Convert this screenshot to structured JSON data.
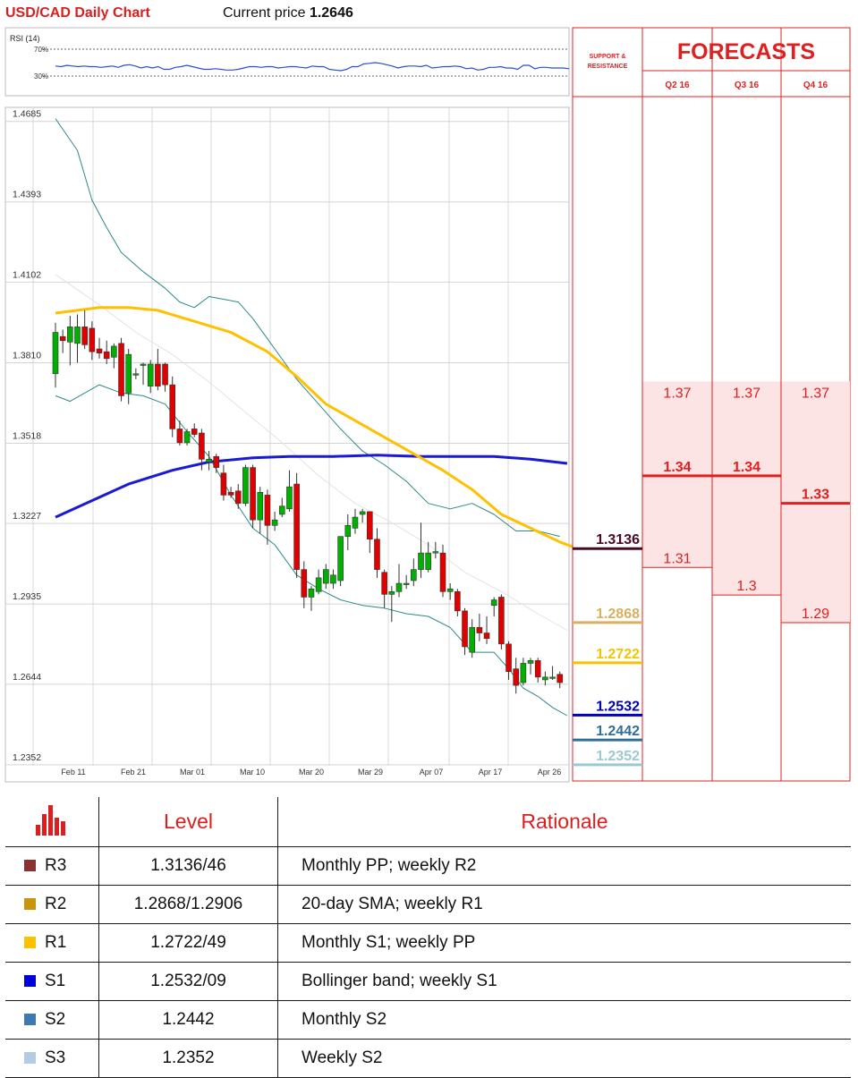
{
  "header": {
    "title": "USD/CAD Daily Chart",
    "price_label": "Current price",
    "price_value": "1.2646"
  },
  "rsi": {
    "label": "RSI (14)",
    "upper": "70%",
    "lower": "30%",
    "values": [
      45,
      44,
      46,
      45,
      44,
      45,
      44,
      44,
      43,
      44,
      45,
      43,
      46,
      47,
      45,
      42,
      44,
      42,
      44,
      40,
      40,
      43,
      44,
      46,
      44,
      42,
      40,
      40,
      41,
      40,
      39,
      39,
      40,
      42,
      44,
      44,
      43,
      44,
      44,
      42,
      43,
      44,
      44,
      43,
      42,
      45,
      44,
      44,
      40,
      39,
      38,
      40,
      44,
      44,
      48,
      49,
      50,
      49,
      47,
      45,
      42,
      44,
      45,
      45,
      44,
      46,
      42,
      43,
      44,
      44,
      45,
      44,
      41,
      42,
      39,
      40,
      43,
      43,
      44,
      42,
      42,
      40,
      46,
      46,
      41,
      43,
      43,
      42,
      42,
      42,
      41
    ]
  },
  "forecasts": {
    "title": "FORECASTS",
    "sr_label_1": "SUPPORT &",
    "sr_label_2": "RESISTANCE",
    "quarters": [
      "Q2 16",
      "Q3 16",
      "Q4 16"
    ],
    "q2": {
      "high": "1.37",
      "mid": "1.34",
      "low": "1.31"
    },
    "q3": {
      "high": "1.37",
      "mid": "1.34",
      "low": "1.3"
    },
    "q4": {
      "high": "1.37",
      "mid": "1.33",
      "low": "1.29"
    },
    "sr_levels": [
      {
        "label": "1.3136",
        "value": 1.3136,
        "color": "#4a0a24"
      },
      {
        "label": "1.2868",
        "value": 1.2868,
        "color": "#d8b060"
      },
      {
        "label": "1.2722",
        "value": 1.2722,
        "color": "#f5c400"
      },
      {
        "label": "1.2532",
        "value": 1.2532,
        "color": "#0000b8"
      },
      {
        "label": "1.2442",
        "value": 1.2442,
        "color": "#2f6f9a"
      },
      {
        "label": "1.2352",
        "value": 1.2352,
        "color": "#9cc8d3"
      }
    ]
  },
  "chart_data": {
    "type": "candlestick",
    "title": "USD/CAD Daily Chart",
    "yticks": [
      "1.4685",
      "1.4393",
      "1.4102",
      "1.3810",
      "1.3518",
      "1.3227",
      "1.2935",
      "1.2644",
      "1.2352"
    ],
    "ylim": [
      1.229,
      1.471
    ],
    "xticks": [
      "Feb 11",
      "Feb 21",
      "Mar 01",
      "Mar 10",
      "Mar 20",
      "Mar 29",
      "Apr 07",
      "Apr 17",
      "Apr 26"
    ],
    "candles": [
      {
        "o": 1.377,
        "h": 1.3955,
        "l": 1.372,
        "c": 1.392
      },
      {
        "o": 1.3905,
        "h": 1.393,
        "l": 1.3845,
        "c": 1.389
      },
      {
        "o": 1.3885,
        "h": 1.398,
        "l": 1.38,
        "c": 1.394
      },
      {
        "o": 1.388,
        "h": 1.3985,
        "l": 1.381,
        "c": 1.394
      },
      {
        "o": 1.394,
        "h": 1.4,
        "l": 1.386,
        "c": 1.3875
      },
      {
        "o": 1.3935,
        "h": 1.396,
        "l": 1.382,
        "c": 1.385
      },
      {
        "o": 1.386,
        "h": 1.39,
        "l": 1.3825,
        "c": 1.3845
      },
      {
        "o": 1.385,
        "h": 1.389,
        "l": 1.3805,
        "c": 1.3825
      },
      {
        "o": 1.383,
        "h": 1.388,
        "l": 1.379,
        "c": 1.387
      },
      {
        "o": 1.388,
        "h": 1.39,
        "l": 1.367,
        "c": 1.369
      },
      {
        "o": 1.37,
        "h": 1.386,
        "l": 1.366,
        "c": 1.384
      },
      {
        "o": 1.3765,
        "h": 1.379,
        "l": 1.375,
        "c": 1.377
      },
      {
        "o": 1.38,
        "h": 1.381,
        "l": 1.373,
        "c": 1.3805
      },
      {
        "o": 1.3725,
        "h": 1.382,
        "l": 1.37,
        "c": 1.3805
      },
      {
        "o": 1.3805,
        "h": 1.386,
        "l": 1.371,
        "c": 1.3725
      },
      {
        "o": 1.3805,
        "h": 1.381,
        "l": 1.3705,
        "c": 1.373
      },
      {
        "o": 1.373,
        "h": 1.376,
        "l": 1.354,
        "c": 1.357
      },
      {
        "o": 1.357,
        "h": 1.36,
        "l": 1.351,
        "c": 1.352
      },
      {
        "o": 1.352,
        "h": 1.357,
        "l": 1.351,
        "c": 1.356
      },
      {
        "o": 1.357,
        "h": 1.359,
        "l": 1.354,
        "c": 1.355
      },
      {
        "o": 1.3555,
        "h": 1.357,
        "l": 1.342,
        "c": 1.346
      },
      {
        "o": 1.345,
        "h": 1.349,
        "l": 1.342,
        "c": 1.346
      },
      {
        "o": 1.347,
        "h": 1.348,
        "l": 1.341,
        "c": 1.343
      },
      {
        "o": 1.341,
        "h": 1.344,
        "l": 1.331,
        "c": 1.333
      },
      {
        "o": 1.334,
        "h": 1.336,
        "l": 1.332,
        "c": 1.333
      },
      {
        "o": 1.3345,
        "h": 1.337,
        "l": 1.328,
        "c": 1.33
      },
      {
        "o": 1.33,
        "h": 1.344,
        "l": 1.329,
        "c": 1.343
      },
      {
        "o": 1.343,
        "h": 1.344,
        "l": 1.321,
        "c": 1.324
      },
      {
        "o": 1.324,
        "h": 1.336,
        "l": 1.319,
        "c": 1.334
      },
      {
        "o": 1.333,
        "h": 1.335,
        "l": 1.315,
        "c": 1.322
      },
      {
        "o": 1.322,
        "h": 1.327,
        "l": 1.32,
        "c": 1.324
      },
      {
        "o": 1.326,
        "h": 1.332,
        "l": 1.325,
        "c": 1.329
      },
      {
        "o": 1.328,
        "h": 1.342,
        "l": 1.327,
        "c": 1.336
      },
      {
        "o": 1.337,
        "h": 1.341,
        "l": 1.303,
        "c": 1.306
      },
      {
        "o": 1.306,
        "h": 1.309,
        "l": 1.292,
        "c": 1.296
      },
      {
        "o": 1.296,
        "h": 1.3,
        "l": 1.291,
        "c": 1.299
      },
      {
        "o": 1.298,
        "h": 1.306,
        "l": 1.297,
        "c": 1.303
      },
      {
        "o": 1.301,
        "h": 1.308,
        "l": 1.299,
        "c": 1.306
      },
      {
        "o": 1.301,
        "h": 1.306,
        "l": 1.299,
        "c": 1.304
      },
      {
        "o": 1.302,
        "h": 1.318,
        "l": 1.3,
        "c": 1.318
      },
      {
        "o": 1.318,
        "h": 1.326,
        "l": 1.313,
        "c": 1.322
      },
      {
        "o": 1.321,
        "h": 1.328,
        "l": 1.319,
        "c": 1.325
      },
      {
        "o": 1.326,
        "h": 1.328,
        "l": 1.323,
        "c": 1.327
      },
      {
        "o": 1.327,
        "h": 1.327,
        "l": 1.312,
        "c": 1.317
      },
      {
        "o": 1.317,
        "h": 1.321,
        "l": 1.303,
        "c": 1.306
      },
      {
        "o": 1.305,
        "h": 1.306,
        "l": 1.292,
        "c": 1.297
      },
      {
        "o": 1.297,
        "h": 1.3,
        "l": 1.287,
        "c": 1.298
      },
      {
        "o": 1.298,
        "h": 1.308,
        "l": 1.296,
        "c": 1.301
      },
      {
        "o": 1.301,
        "h": 1.304,
        "l": 1.299,
        "c": 1.301
      },
      {
        "o": 1.302,
        "h": 1.31,
        "l": 1.3,
        "c": 1.306
      },
      {
        "o": 1.306,
        "h": 1.323,
        "l": 1.303,
        "c": 1.312
      },
      {
        "o": 1.306,
        "h": 1.316,
        "l": 1.305,
        "c": 1.312
      },
      {
        "o": 1.312,
        "h": 1.316,
        "l": 1.31,
        "c": 1.3125
      },
      {
        "o": 1.312,
        "h": 1.315,
        "l": 1.296,
        "c": 1.298
      },
      {
        "o": 1.298,
        "h": 1.301,
        "l": 1.295,
        "c": 1.299
      },
      {
        "o": 1.298,
        "h": 1.299,
        "l": 1.289,
        "c": 1.291
      },
      {
        "o": 1.291,
        "h": 1.292,
        "l": 1.275,
        "c": 1.278
      },
      {
        "o": 1.276,
        "h": 1.288,
        "l": 1.274,
        "c": 1.285
      },
      {
        "o": 1.285,
        "h": 1.29,
        "l": 1.28,
        "c": 1.283
      },
      {
        "o": 1.283,
        "h": 1.289,
        "l": 1.279,
        "c": 1.281
      },
      {
        "o": 1.293,
        "h": 1.296,
        "l": 1.289,
        "c": 1.295
      },
      {
        "o": 1.296,
        "h": 1.297,
        "l": 1.277,
        "c": 1.279
      },
      {
        "o": 1.279,
        "h": 1.28,
        "l": 1.266,
        "c": 1.269
      },
      {
        "o": 1.27,
        "h": 1.274,
        "l": 1.261,
        "c": 1.264
      },
      {
        "o": 1.265,
        "h": 1.274,
        "l": 1.264,
        "c": 1.272
      },
      {
        "o": 1.272,
        "h": 1.274,
        "l": 1.268,
        "c": 1.273
      },
      {
        "o": 1.273,
        "h": 1.274,
        "l": 1.265,
        "c": 1.267
      },
      {
        "o": 1.266,
        "h": 1.269,
        "l": 1.264,
        "c": 1.267
      },
      {
        "o": 1.267,
        "h": 1.271,
        "l": 1.266,
        "c": 1.267
      },
      {
        "o": 1.268,
        "h": 1.269,
        "l": 1.263,
        "c": 1.265
      }
    ],
    "sma50": [
      [
        0,
        1.399
      ],
      [
        3,
        1.4
      ],
      [
        6,
        1.401
      ],
      [
        10,
        1.401
      ],
      [
        14,
        1.4
      ],
      [
        19,
        1.396
      ],
      [
        24,
        1.392
      ],
      [
        29,
        1.385
      ],
      [
        33,
        1.376
      ],
      [
        37,
        1.366
      ],
      [
        41,
        1.36
      ],
      [
        45,
        1.354
      ],
      [
        49,
        1.348
      ],
      [
        53,
        1.342
      ],
      [
        57,
        1.335
      ],
      [
        61,
        1.326
      ],
      [
        65,
        1.321
      ],
      [
        69,
        1.316
      ],
      [
        72,
        1.313
      ]
    ],
    "sma100": [
      [
        0,
        1.325
      ],
      [
        5,
        1.331
      ],
      [
        10,
        1.337
      ],
      [
        16,
        1.342
      ],
      [
        21,
        1.345
      ],
      [
        27,
        1.3465
      ],
      [
        32,
        1.347
      ],
      [
        38,
        1.347
      ],
      [
        44,
        1.3475
      ],
      [
        50,
        1.347
      ],
      [
        55,
        1.347
      ],
      [
        60,
        1.347
      ],
      [
        65,
        1.346
      ],
      [
        70,
        1.3445
      ]
    ],
    "boll_upper": [
      [
        0,
        1.4695
      ],
      [
        3,
        1.458
      ],
      [
        5,
        1.44
      ],
      [
        7,
        1.43
      ],
      [
        9,
        1.421
      ],
      [
        12,
        1.414
      ],
      [
        15,
        1.408
      ],
      [
        17,
        1.403
      ],
      [
        19,
        1.401
      ],
      [
        21,
        1.405
      ],
      [
        23,
        1.404
      ],
      [
        25,
        1.403
      ],
      [
        27,
        1.397
      ],
      [
        30,
        1.386
      ],
      [
        33,
        1.375
      ],
      [
        36,
        1.366
      ],
      [
        39,
        1.357
      ],
      [
        42,
        1.349
      ],
      [
        45,
        1.344
      ],
      [
        48,
        1.338
      ],
      [
        51,
        1.33
      ],
      [
        54,
        1.328
      ],
      [
        57,
        1.33
      ],
      [
        60,
        1.326
      ],
      [
        63,
        1.32
      ],
      [
        66,
        1.32
      ],
      [
        69,
        1.318
      ]
    ],
    "boll_lower": [
      [
        0,
        1.369
      ],
      [
        2,
        1.367
      ],
      [
        4,
        1.37
      ],
      [
        6,
        1.373
      ],
      [
        9,
        1.37
      ],
      [
        12,
        1.369
      ],
      [
        15,
        1.366
      ],
      [
        18,
        1.356
      ],
      [
        21,
        1.347
      ],
      [
        24,
        1.333
      ],
      [
        27,
        1.321
      ],
      [
        30,
        1.315
      ],
      [
        33,
        1.304
      ],
      [
        36,
        1.299
      ],
      [
        39,
        1.295
      ],
      [
        42,
        1.293
      ],
      [
        45,
        1.292
      ],
      [
        48,
        1.29
      ],
      [
        51,
        1.289
      ],
      [
        54,
        1.285
      ],
      [
        57,
        1.276
      ],
      [
        60,
        1.276
      ],
      [
        62,
        1.27
      ],
      [
        64,
        1.263
      ],
      [
        66,
        1.26
      ],
      [
        68,
        1.256
      ],
      [
        70,
        1.253
      ]
    ],
    "mid_line": [
      [
        0,
        1.413
      ],
      [
        6,
        1.402
      ],
      [
        11,
        1.392
      ],
      [
        16,
        1.384
      ],
      [
        21,
        1.374
      ],
      [
        26,
        1.363
      ],
      [
        31,
        1.352
      ],
      [
        36,
        1.34
      ],
      [
        41,
        1.33
      ],
      [
        46,
        1.323
      ],
      [
        51,
        1.315
      ],
      [
        56,
        1.305
      ],
      [
        61,
        1.298
      ],
      [
        66,
        1.29
      ],
      [
        70,
        1.284
      ]
    ]
  },
  "table": {
    "header_level": "Level",
    "header_rationale": "Rationale",
    "rows": [
      {
        "tag": "R3",
        "level": "1.3136/46",
        "rationale": "Monthly PP; weekly R2",
        "color": "#8b3131"
      },
      {
        "tag": "R2",
        "level": "1.2868/1.2906",
        "rationale": "20-day SMA; weekly R1",
        "color": "#c9950c"
      },
      {
        "tag": "R1",
        "level": "1.2722/49",
        "rationale": "Monthly S1; weekly PP",
        "color": "#ffc000"
      },
      {
        "tag": "S1",
        "level": "1.2532/09",
        "rationale": "Bollinger band; weekly S1",
        "color": "#0000d8"
      },
      {
        "tag": "S2",
        "level": "1.2442",
        "rationale": "Monthly S2",
        "color": "#3d7ab5"
      },
      {
        "tag": "S3",
        "level": "1.2352",
        "rationale": "Weekly S2",
        "color": "#b3cce4"
      }
    ]
  }
}
